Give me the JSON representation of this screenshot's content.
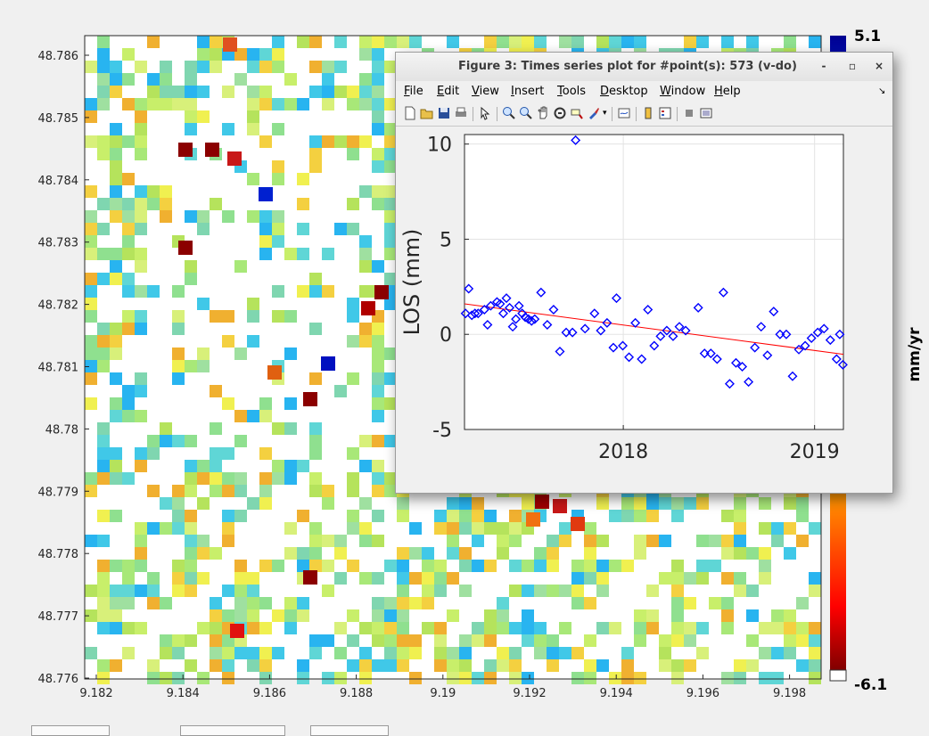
{
  "map": {
    "y_ticks": [
      "48.786",
      "48.785",
      "48.784",
      "48.783",
      "48.782",
      "48.781",
      "48.78",
      "48.779",
      "48.778",
      "48.777",
      "48.776"
    ],
    "x_ticks": [
      "9.182",
      "9.184",
      "9.186",
      "9.188",
      "9.19",
      "9.192",
      "9.194",
      "9.196",
      "9.198"
    ],
    "colorbar": {
      "max_label": "5.1",
      "min_label": "-6.1",
      "unit_label": "mm/yr"
    }
  },
  "figure_window": {
    "title": "Figure 3:  Times series plot for #point(s): 573 (v-do)",
    "controls": {
      "minimize": "-",
      "maximize": "▫",
      "close": "×"
    },
    "menu": [
      {
        "u": "F",
        "rest": "ile"
      },
      {
        "u": "E",
        "rest": "dit"
      },
      {
        "u": "V",
        "rest": "iew"
      },
      {
        "u": "I",
        "rest": "nsert"
      },
      {
        "u": "T",
        "rest": "ools"
      },
      {
        "u": "D",
        "rest": "esktop"
      },
      {
        "u": "W",
        "rest": "indow"
      },
      {
        "u": "H",
        "rest": "elp"
      }
    ],
    "menu_overflow": "↘"
  },
  "chart_data": {
    "type": "scatter",
    "ylabel": "LOS (mm)",
    "xlabel": "",
    "x_tick_labels": [
      "2018",
      "2019"
    ],
    "y_ticks": [
      -5,
      0,
      5,
      10
    ],
    "ylim": [
      -5,
      10.5
    ],
    "xlim": [
      "2017-03-04",
      "2019-02-25"
    ],
    "grid": true,
    "trend_line": {
      "color": "#ff0000",
      "start": [
        "2017-03-04",
        1.6
      ],
      "end": [
        "2019-02-25",
        -1.05
      ]
    },
    "marker_color": "#0000ff",
    "points": [
      [
        "2017-03-06",
        1.1
      ],
      [
        "2017-03-12",
        2.4
      ],
      [
        "2017-03-18",
        1.0
      ],
      [
        "2017-03-24",
        1.1
      ],
      [
        "2017-03-30",
        1.1
      ],
      [
        "2017-04-11",
        1.3
      ],
      [
        "2017-04-17",
        0.5
      ],
      [
        "2017-04-23",
        1.5
      ],
      [
        "2017-05-05",
        1.7
      ],
      [
        "2017-05-11",
        1.6
      ],
      [
        "2017-05-17",
        1.1
      ],
      [
        "2017-05-23",
        1.9
      ],
      [
        "2017-05-29",
        1.4
      ],
      [
        "2017-06-04",
        0.4
      ],
      [
        "2017-06-10",
        0.8
      ],
      [
        "2017-06-16",
        1.5
      ],
      [
        "2017-06-22",
        1.1
      ],
      [
        "2017-06-28",
        0.9
      ],
      [
        "2017-07-04",
        0.8
      ],
      [
        "2017-07-10",
        0.7
      ],
      [
        "2017-07-16",
        0.8
      ],
      [
        "2017-07-28",
        2.2
      ],
      [
        "2017-08-09",
        0.5
      ],
      [
        "2017-08-21",
        1.3
      ],
      [
        "2017-09-02",
        -0.9
      ],
      [
        "2017-09-14",
        0.1
      ],
      [
        "2017-09-26",
        0.1
      ],
      [
        "2017-10-02",
        10.2
      ],
      [
        "2017-10-20",
        0.3
      ],
      [
        "2017-11-07",
        1.1
      ],
      [
        "2017-11-19",
        0.2
      ],
      [
        "2017-12-01",
        0.6
      ],
      [
        "2017-12-13",
        -0.7
      ],
      [
        "2017-12-19",
        1.9
      ],
      [
        "2017-12-31",
        -0.6
      ],
      [
        "2018-01-12",
        -1.2
      ],
      [
        "2018-01-24",
        0.6
      ],
      [
        "2018-02-05",
        -1.3
      ],
      [
        "2018-02-17",
        1.3
      ],
      [
        "2018-03-01",
        -0.6
      ],
      [
        "2018-03-13",
        -0.1
      ],
      [
        "2018-03-25",
        0.2
      ],
      [
        "2018-04-06",
        -0.1
      ],
      [
        "2018-04-18",
        0.4
      ],
      [
        "2018-04-30",
        0.2
      ],
      [
        "2018-05-24",
        1.4
      ],
      [
        "2018-06-05",
        -1.0
      ],
      [
        "2018-06-17",
        -1.0
      ],
      [
        "2018-06-29",
        -1.3
      ],
      [
        "2018-07-11",
        2.2
      ],
      [
        "2018-07-23",
        -2.6
      ],
      [
        "2018-08-04",
        -1.5
      ],
      [
        "2018-08-16",
        -1.7
      ],
      [
        "2018-08-28",
        -2.5
      ],
      [
        "2018-09-09",
        -0.7
      ],
      [
        "2018-09-21",
        0.4
      ],
      [
        "2018-10-03",
        -1.1
      ],
      [
        "2018-10-15",
        1.2
      ],
      [
        "2018-10-27",
        0.0
      ],
      [
        "2018-11-08",
        0.0
      ],
      [
        "2018-11-20",
        -2.2
      ],
      [
        "2018-12-02",
        -0.8
      ],
      [
        "2018-12-14",
        -0.6
      ],
      [
        "2018-12-26",
        -0.2
      ],
      [
        "2019-01-07",
        0.1
      ],
      [
        "2019-01-19",
        0.3
      ],
      [
        "2019-01-31",
        -0.3
      ],
      [
        "2019-02-12",
        -1.3
      ],
      [
        "2019-02-18",
        0.0
      ],
      [
        "2019-02-24",
        -1.6
      ]
    ]
  }
}
